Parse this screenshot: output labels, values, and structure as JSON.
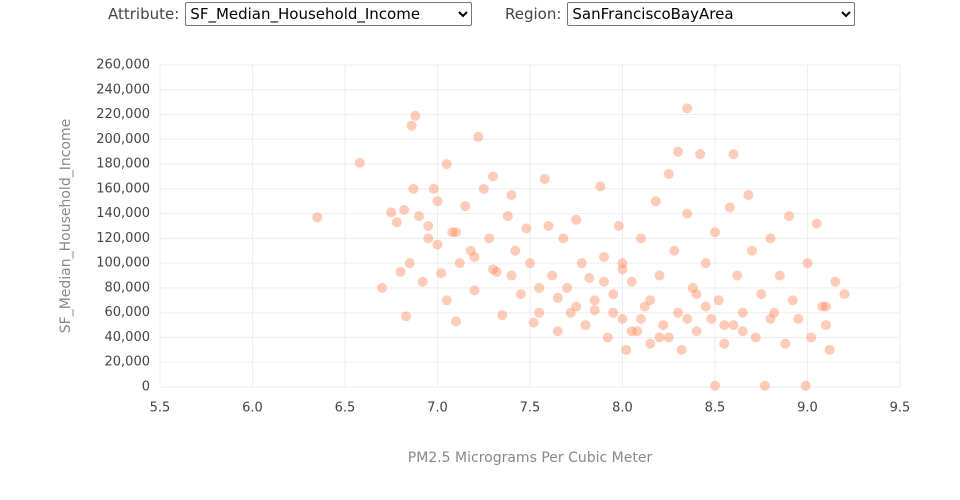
{
  "controls": [
    {
      "label": "Attribute:",
      "value": "SF_Median_Household_Income"
    },
    {
      "label": "Region:",
      "value": "SanFranciscoBayArea"
    }
  ],
  "chart_data": {
    "type": "scatter",
    "x_label": "PM2.5 Micrograms Per Cubic Meter",
    "y_label": "SF_Median_Household_Income",
    "color": "#ff7f50",
    "grid": true,
    "xlim": [
      5.5,
      9.5
    ],
    "xticks": [
      5.5,
      {
        "value": 6,
        "label": "6.0"
      },
      6.5,
      {
        "value": 7,
        "label": "7.0"
      },
      7.5,
      {
        "value": 8,
        "label": "8.0"
      },
      8.5,
      {
        "value": 9,
        "label": "9.0"
      },
      9.5
    ],
    "ylim": [
      0,
      260000
    ],
    "yticks": [
      0,
      {
        "value": 20000,
        "label": "20,000"
      },
      {
        "value": 40000,
        "label": "40,000"
      },
      {
        "value": 60000,
        "label": "60,000"
      },
      {
        "value": 80000,
        "label": "80,000"
      },
      {
        "value": 100000,
        "label": "100,000"
      },
      {
        "value": 120000,
        "label": "120,000"
      },
      {
        "value": 140000,
        "label": "140,000"
      },
      {
        "value": 160000,
        "label": "160,000"
      },
      {
        "value": 180000,
        "label": "180,000"
      },
      {
        "value": 200000,
        "label": "200,000"
      },
      {
        "value": 220000,
        "label": "220,000"
      },
      {
        "value": 240000,
        "label": "240,000"
      },
      {
        "value": 260000,
        "label": "260,000"
      }
    ],
    "x": [
      6.35,
      6.58,
      6.7,
      6.75,
      6.78,
      6.8,
      6.82,
      6.83,
      6.85,
      6.86,
      6.88,
      6.87,
      6.9,
      6.92,
      6.95,
      6.98,
      7.0,
      7.02,
      7.05,
      7.05,
      7.08,
      7.1,
      7.12,
      7.15,
      7.18,
      7.2,
      7.22,
      7.25,
      7.28,
      7.3,
      7.32,
      7.35,
      7.38,
      7.4,
      7.42,
      7.45,
      7.48,
      7.5,
      7.52,
      7.55,
      7.58,
      7.6,
      7.62,
      7.65,
      7.68,
      7.7,
      7.72,
      7.75,
      7.78,
      7.8,
      7.82,
      7.85,
      7.88,
      7.9,
      7.92,
      7.95,
      7.98,
      8.0,
      8.0,
      8.02,
      8.05,
      8.08,
      8.1,
      8.12,
      8.15,
      8.18,
      8.2,
      8.22,
      8.25,
      8.28,
      8.3,
      8.3,
      8.32,
      8.35,
      8.35,
      8.38,
      8.4,
      8.42,
      8.45,
      8.48,
      8.5,
      8.5,
      8.52,
      8.55,
      8.58,
      8.6,
      8.62,
      8.65,
      8.68,
      8.7,
      8.72,
      8.75,
      8.77,
      8.8,
      8.82,
      8.85,
      8.88,
      8.9,
      8.92,
      8.95,
      8.99,
      9.0,
      9.02,
      9.05,
      9.08,
      9.1,
      9.12,
      9.15,
      9.2,
      7.95,
      8.05,
      8.15,
      8.25,
      8.35,
      8.45,
      7.85,
      7.75,
      8.55,
      8.65,
      7.65,
      7.55,
      8.1,
      8.2,
      8.0,
      7.9,
      8.4,
      8.6,
      7.0,
      7.2,
      7.4,
      6.95,
      7.1,
      7.3,
      8.8,
      9.1
    ],
    "y": [
      137000,
      181000,
      80000,
      141000,
      133000,
      93000,
      143000,
      57000,
      100000,
      211000,
      219000,
      160000,
      138000,
      85000,
      120000,
      160000,
      150000,
      92000,
      180000,
      70000,
      125000,
      53000,
      100000,
      146000,
      110000,
      78000,
      202000,
      160000,
      120000,
      170000,
      93000,
      58000,
      138000,
      155000,
      110000,
      75000,
      128000,
      100000,
      52000,
      60000,
      168000,
      130000,
      90000,
      45000,
      120000,
      80000,
      60000,
      135000,
      100000,
      50000,
      88000,
      62000,
      162000,
      105000,
      40000,
      75000,
      130000,
      55000,
      100000,
      30000,
      85000,
      45000,
      120000,
      65000,
      35000,
      150000,
      90000,
      50000,
      172000,
      110000,
      60000,
      190000,
      30000,
      225000,
      140000,
      80000,
      45000,
      188000,
      100000,
      55000,
      1000,
      125000,
      70000,
      35000,
      145000,
      188000,
      90000,
      60000,
      155000,
      110000,
      40000,
      75000,
      1000,
      120000,
      60000,
      90000,
      35000,
      138000,
      70000,
      55000,
      1000,
      100000,
      40000,
      132000,
      65000,
      50000,
      30000,
      85000,
      75000,
      60000,
      45000,
      70000,
      40000,
      55000,
      65000,
      70000,
      65000,
      50000,
      45000,
      72000,
      80000,
      55000,
      40000,
      95000,
      85000,
      75000,
      50000,
      115000,
      105000,
      90000,
      130000,
      125000,
      95000,
      55000,
      65000
    ]
  }
}
